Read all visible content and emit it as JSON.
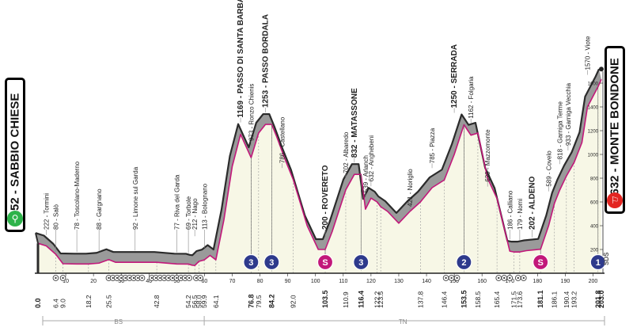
{
  "start": {
    "label": "252 - SABBIO CHIESE",
    "color": "#2db34a",
    "icon": "bike-icon"
  },
  "finish": {
    "label": "1632 - MONTE BONDONE",
    "color": "#e32521",
    "icon": "finish-flag-icon"
  },
  "logo": "SDS",
  "region_labels": [
    "BS",
    "TN"
  ],
  "chart_data": {
    "type": "area",
    "title": "",
    "xlabel": "",
    "ylabel": "",
    "xlim": [
      0,
      203.0
    ],
    "ylim": [
      0,
      1800
    ],
    "y_ticks": [
      200,
      400,
      600,
      800,
      1000,
      1200,
      1400,
      1600
    ],
    "x_ticks": [
      10,
      20,
      30,
      40,
      50,
      60,
      70,
      80,
      90,
      100,
      110,
      120,
      130,
      140,
      150,
      160,
      170,
      180,
      190,
      200
    ],
    "profile": {
      "x": [
        0,
        3,
        6.4,
        9.0,
        14,
        18.2,
        22,
        25.5,
        28,
        35,
        42.8,
        50,
        54.2,
        55.5,
        56.5,
        58.0,
        59.9,
        62,
        64.1,
        67,
        70,
        73,
        76.8,
        79.5,
        82,
        84.2,
        86,
        89,
        92.0,
        97,
        101,
        103.5,
        106,
        110.9,
        114,
        116.4,
        118,
        120,
        122.2,
        123.5,
        126,
        130,
        134,
        137.8,
        142,
        146.4,
        150,
        153.5,
        156,
        158.5,
        162,
        165.4,
        170,
        171.5,
        173.6,
        176,
        181.1,
        184,
        186.1,
        188,
        190.4,
        193.2,
        196,
        198,
        201.8,
        203.0
      ],
      "y": [
        252,
        230,
        160,
        80,
        78,
        78,
        85,
        115,
        92,
        92,
        92,
        78,
        77,
        68,
        65,
        100,
        112,
        150,
        113,
        450,
        900,
        1169,
        973,
        1180,
        1253,
        1253,
        1150,
        960,
        786,
        400,
        200,
        200,
        350,
        702,
        832,
        832,
        539,
        632,
        600,
        560,
        520,
        421,
        520,
        600,
        720,
        785,
        1000,
        1250,
        1162,
        1180,
        800,
        629,
        186,
        179,
        179,
        190,
        202,
        400,
        589,
        700,
        818,
        933,
        1100,
        1400,
        1570,
        1632
      ]
    },
    "km_labels": [
      "0.0",
      "6.4",
      "9.0",
      "18.2",
      "25.5",
      "42.8",
      "54.2",
      "56.5",
      "58.0",
      "59.9",
      "64.1",
      "76.8",
      "79.5",
      "84.2",
      "92.0",
      "103.5",
      "110.9",
      "116.4",
      "122.2",
      "123.5",
      "137.8",
      "146.4",
      "153.5",
      "158.5",
      "165.4",
      "171.5",
      "173.6",
      "181.1",
      "186.1",
      "190.4",
      "193.2",
      "201.8",
      "203.0"
    ],
    "km_bold": [
      "0.0",
      "76.8",
      "84.2",
      "103.5",
      "116.4",
      "153.5",
      "181.1",
      "201.8",
      "203.0"
    ],
    "waypoints": [
      {
        "km": 3,
        "alt": 222,
        "label": "222 - Tormini",
        "bold": false
      },
      {
        "km": 6.4,
        "alt": 80,
        "label": "80 - Salò",
        "bold": false
      },
      {
        "km": 14,
        "alt": 78,
        "label": "78 - Toscolano-Maderno",
        "bold": false
      },
      {
        "km": 22,
        "alt": 88,
        "label": "88 - Gargnano",
        "bold": false
      },
      {
        "km": 35,
        "alt": 92,
        "label": "92 - Limone sul Garda",
        "bold": false
      },
      {
        "km": 50,
        "alt": 77,
        "label": "77 - Riva del Garda",
        "bold": false
      },
      {
        "km": 54.2,
        "alt": 69,
        "label": "69 - Torbole",
        "bold": false
      },
      {
        "km": 56.5,
        "alt": 212,
        "label": "212 - Nago",
        "bold": false
      },
      {
        "km": 60,
        "alt": 113,
        "label": "113 - Bolognano",
        "bold": false
      },
      {
        "km": 73,
        "alt": 1169,
        "label": "1169 - PASSO DI SANTA BARBARA",
        "bold": true
      },
      {
        "km": 76.8,
        "alt": 973,
        "label": "973 - Ronzo Chienis",
        "bold": false
      },
      {
        "km": 82,
        "alt": 1253,
        "label": "1253 - PASSO BORDALA",
        "bold": true
      },
      {
        "km": 88,
        "alt": 786,
        "label": "786 - Castellano",
        "bold": false
      },
      {
        "km": 103.5,
        "alt": 200,
        "label": "200 - ROVERETO",
        "bold": true
      },
      {
        "km": 110.9,
        "alt": 702,
        "label": "702 - Albaredo",
        "bold": false
      },
      {
        "km": 114,
        "alt": 832,
        "label": "832 - MATASSONE",
        "bold": true
      },
      {
        "km": 118,
        "alt": 539,
        "label": "539 - Arlanch",
        "bold": false
      },
      {
        "km": 120,
        "alt": 632,
        "label": "632 - Anghebeni",
        "bold": false
      },
      {
        "km": 134,
        "alt": 421,
        "label": "421 - Noriglio",
        "bold": false
      },
      {
        "km": 142,
        "alt": 785,
        "label": "785 - Piazza",
        "bold": false
      },
      {
        "km": 150,
        "alt": 1250,
        "label": "1250 - SERRADA",
        "bold": true
      },
      {
        "km": 156,
        "alt": 1162,
        "label": "1162 - Folgaria",
        "bold": false
      },
      {
        "km": 162,
        "alt": 629,
        "label": "629 - Mazzomonte",
        "bold": false
      },
      {
        "km": 170,
        "alt": 186,
        "label": "186 - Calliano",
        "bold": false
      },
      {
        "km": 173.6,
        "alt": 179,
        "label": "179 - Nomi",
        "bold": false
      },
      {
        "km": 178,
        "alt": 202,
        "label": "202 - ALDENO",
        "bold": true
      },
      {
        "km": 184,
        "alt": 589,
        "label": "589 - Covelo",
        "bold": false
      },
      {
        "km": 188,
        "alt": 818,
        "label": "818 - Garniga Terme",
        "bold": false
      },
      {
        "km": 191,
        "alt": 933,
        "label": "933 - Garniga Vecchia",
        "bold": false
      },
      {
        "km": 198,
        "alt": 1570,
        "label": "1570 - Viote",
        "bold": false
      }
    ],
    "markers": [
      {
        "km": 76.8,
        "kind": "kom",
        "label": "3",
        "color": "#2e3a8c"
      },
      {
        "km": 84.2,
        "kind": "kom",
        "label": "3",
        "color": "#2e3a8c"
      },
      {
        "km": 103.5,
        "kind": "sprint",
        "label": "S",
        "color": "#c2187a"
      },
      {
        "km": 116.4,
        "kind": "kom",
        "label": "3",
        "color": "#2e3a8c"
      },
      {
        "km": 153.5,
        "kind": "kom",
        "label": "2",
        "color": "#2e3a8c"
      },
      {
        "km": 181.1,
        "kind": "sprint",
        "label": "S",
        "color": "#c2187a"
      },
      {
        "km": 201.8,
        "kind": "kom",
        "label": "1",
        "color": "#2e3a8c"
      }
    ],
    "axis_icons_km": [
      6.4,
      9.0,
      25.5,
      27,
      28.5,
      30,
      31.5,
      33,
      34.5,
      36,
      37.5,
      41,
      42.5,
      44,
      45.5,
      47,
      48.5,
      50,
      51.5,
      53,
      54.5,
      57,
      58.5,
      147,
      149,
      151,
      166,
      168,
      170,
      173,
      175
    ]
  }
}
